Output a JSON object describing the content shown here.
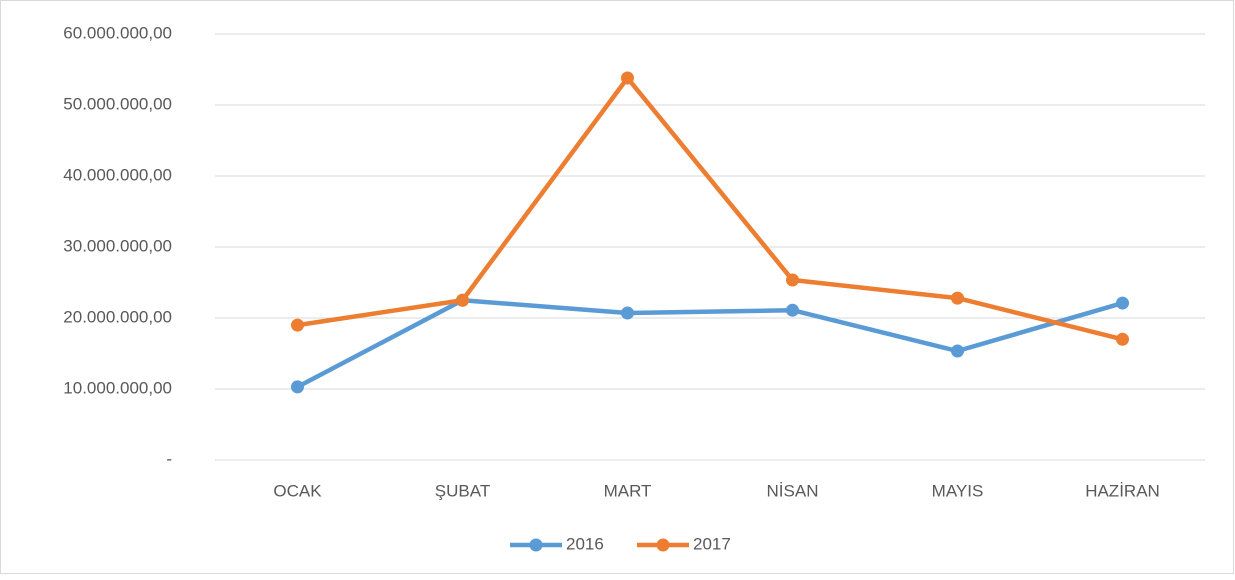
{
  "chart_data": {
    "type": "line",
    "categories": [
      "OCAK",
      "ŞUBAT",
      "MART",
      "NİSAN",
      "MAYIS",
      "HAZİRAN"
    ],
    "series": [
      {
        "name": "2016",
        "color": "#5b9bd5",
        "values": [
          10300000,
          22500000,
          20700000,
          21100000,
          15350000,
          22100000
        ]
      },
      {
        "name": "2017",
        "color": "#ed7d31",
        "values": [
          19000000,
          22500000,
          53800000,
          25350000,
          22800000,
          17000000
        ]
      }
    ],
    "ylim": [
      0,
      60000000
    ],
    "yticks": [
      {
        "value": 0,
        "label": "-"
      },
      {
        "value": 10000000,
        "label": "10.000.000,00"
      },
      {
        "value": 20000000,
        "label": "20.000.000,00"
      },
      {
        "value": 30000000,
        "label": "30.000.000,00"
      },
      {
        "value": 40000000,
        "label": "40.000.000,00"
      },
      {
        "value": 50000000,
        "label": "50.000.000,00"
      },
      {
        "value": 60000000,
        "label": "60.000.000,00"
      }
    ],
    "grid": true,
    "legend": "bottom"
  }
}
